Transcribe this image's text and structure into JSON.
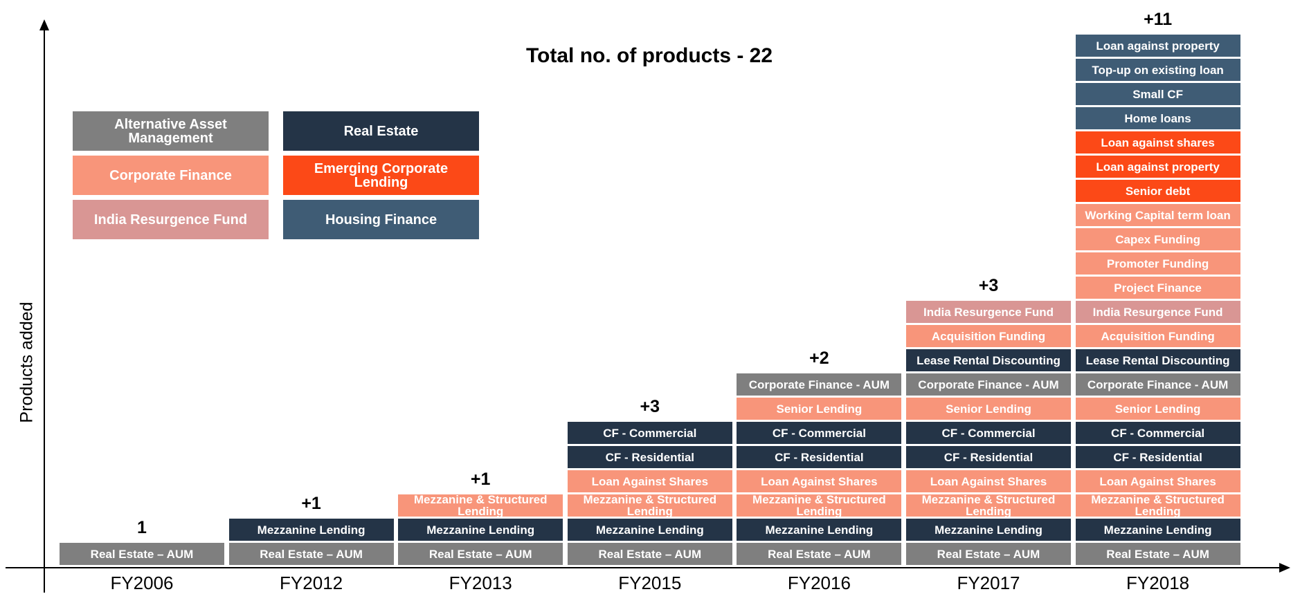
{
  "title": "Total no. of products - 22",
  "y_axis_label": "Products added",
  "legend": [
    {
      "label": "Alternative Asset Management",
      "color": "#7f7f7f"
    },
    {
      "label": "Corporate Finance",
      "color": "#f8957a"
    },
    {
      "label": "India Resurgence Fund",
      "color": "#d99694"
    },
    {
      "label": "Real Estate",
      "color": "#243447"
    },
    {
      "label": "Emerging Corporate Lending",
      "color": "#fc4917"
    },
    {
      "label": "Housing Finance",
      "color": "#3f5c75"
    }
  ],
  "columns": [
    {
      "year": "FY2006",
      "added": "1",
      "items": [
        {
          "label": "Real Estate – AUM",
          "color": "#7f7f7f"
        }
      ]
    },
    {
      "year": "FY2012",
      "added": "+1",
      "items": [
        {
          "label": "Real Estate – AUM",
          "color": "#7f7f7f"
        },
        {
          "label": "Mezzanine Lending",
          "color": "#243447"
        }
      ]
    },
    {
      "year": "FY2013",
      "added": "+1",
      "items": [
        {
          "label": "Real Estate – AUM",
          "color": "#7f7f7f"
        },
        {
          "label": "Mezzanine Lending",
          "color": "#243447"
        },
        {
          "label": "Mezzanine & Structured Lending",
          "color": "#f8957a"
        }
      ]
    },
    {
      "year": "FY2015",
      "added": "+3",
      "items": [
        {
          "label": "Real Estate – AUM",
          "color": "#7f7f7f"
        },
        {
          "label": "Mezzanine Lending",
          "color": "#243447"
        },
        {
          "label": "Mezzanine & Structured Lending",
          "color": "#f8957a"
        },
        {
          "label": "Loan Against Shares",
          "color": "#f8957a"
        },
        {
          "label": "CF - Residential",
          "color": "#243447"
        },
        {
          "label": "CF - Commercial",
          "color": "#243447"
        }
      ]
    },
    {
      "year": "FY2016",
      "added": "+2",
      "items": [
        {
          "label": "Real Estate – AUM",
          "color": "#7f7f7f"
        },
        {
          "label": "Mezzanine Lending",
          "color": "#243447"
        },
        {
          "label": "Mezzanine & Structured Lending",
          "color": "#f8957a"
        },
        {
          "label": "Loan Against Shares",
          "color": "#f8957a"
        },
        {
          "label": "CF - Residential",
          "color": "#243447"
        },
        {
          "label": "CF - Commercial",
          "color": "#243447"
        },
        {
          "label": "Senior Lending",
          "color": "#f8957a"
        },
        {
          "label": "Corporate Finance - AUM",
          "color": "#7f7f7f"
        }
      ]
    },
    {
      "year": "FY2017",
      "added": "+3",
      "items": [
        {
          "label": "Real Estate – AUM",
          "color": "#7f7f7f"
        },
        {
          "label": "Mezzanine Lending",
          "color": "#243447"
        },
        {
          "label": "Mezzanine & Structured Lending",
          "color": "#f8957a"
        },
        {
          "label": "Loan Against Shares",
          "color": "#f8957a"
        },
        {
          "label": "CF - Residential",
          "color": "#243447"
        },
        {
          "label": "CF - Commercial",
          "color": "#243447"
        },
        {
          "label": "Senior Lending",
          "color": "#f8957a"
        },
        {
          "label": "Corporate Finance - AUM",
          "color": "#7f7f7f"
        },
        {
          "label": "Lease Rental Discounting",
          "color": "#243447"
        },
        {
          "label": "Acquisition  Funding",
          "color": "#f8957a"
        },
        {
          "label": "India Resurgence Fund",
          "color": "#d99694"
        }
      ]
    },
    {
      "year": "FY2018",
      "added": "+11",
      "items": [
        {
          "label": "Real Estate – AUM",
          "color": "#7f7f7f"
        },
        {
          "label": "Mezzanine Lending",
          "color": "#243447"
        },
        {
          "label": "Mezzanine & Structured Lending",
          "color": "#f8957a"
        },
        {
          "label": "Loan Against Shares",
          "color": "#f8957a"
        },
        {
          "label": "CF - Residential",
          "color": "#243447"
        },
        {
          "label": "CF - Commercial",
          "color": "#243447"
        },
        {
          "label": "Senior Lending",
          "color": "#f8957a"
        },
        {
          "label": "Corporate Finance - AUM",
          "color": "#7f7f7f"
        },
        {
          "label": "Lease Rental Discounting",
          "color": "#243447"
        },
        {
          "label": "Acquisition  Funding",
          "color": "#f8957a"
        },
        {
          "label": "India Resurgence Fund",
          "color": "#d99694"
        },
        {
          "label": "Project Finance",
          "color": "#f8957a"
        },
        {
          "label": "Promoter Funding",
          "color": "#f8957a"
        },
        {
          "label": "Capex Funding",
          "color": "#f8957a"
        },
        {
          "label": "Working Capital term loan",
          "color": "#f8957a"
        },
        {
          "label": "Senior debt",
          "color": "#fc4917"
        },
        {
          "label": "Loan against property",
          "color": "#fc4917"
        },
        {
          "label": "Loan against shares",
          "color": "#fc4917"
        },
        {
          "label": "Home loans",
          "color": "#3f5c75"
        },
        {
          "label": "Small CF",
          "color": "#3f5c75"
        },
        {
          "label": "Top-up on existing loan",
          "color": "#3f5c75"
        },
        {
          "label": "Loan against property",
          "color": "#3f5c75"
        }
      ]
    }
  ]
}
